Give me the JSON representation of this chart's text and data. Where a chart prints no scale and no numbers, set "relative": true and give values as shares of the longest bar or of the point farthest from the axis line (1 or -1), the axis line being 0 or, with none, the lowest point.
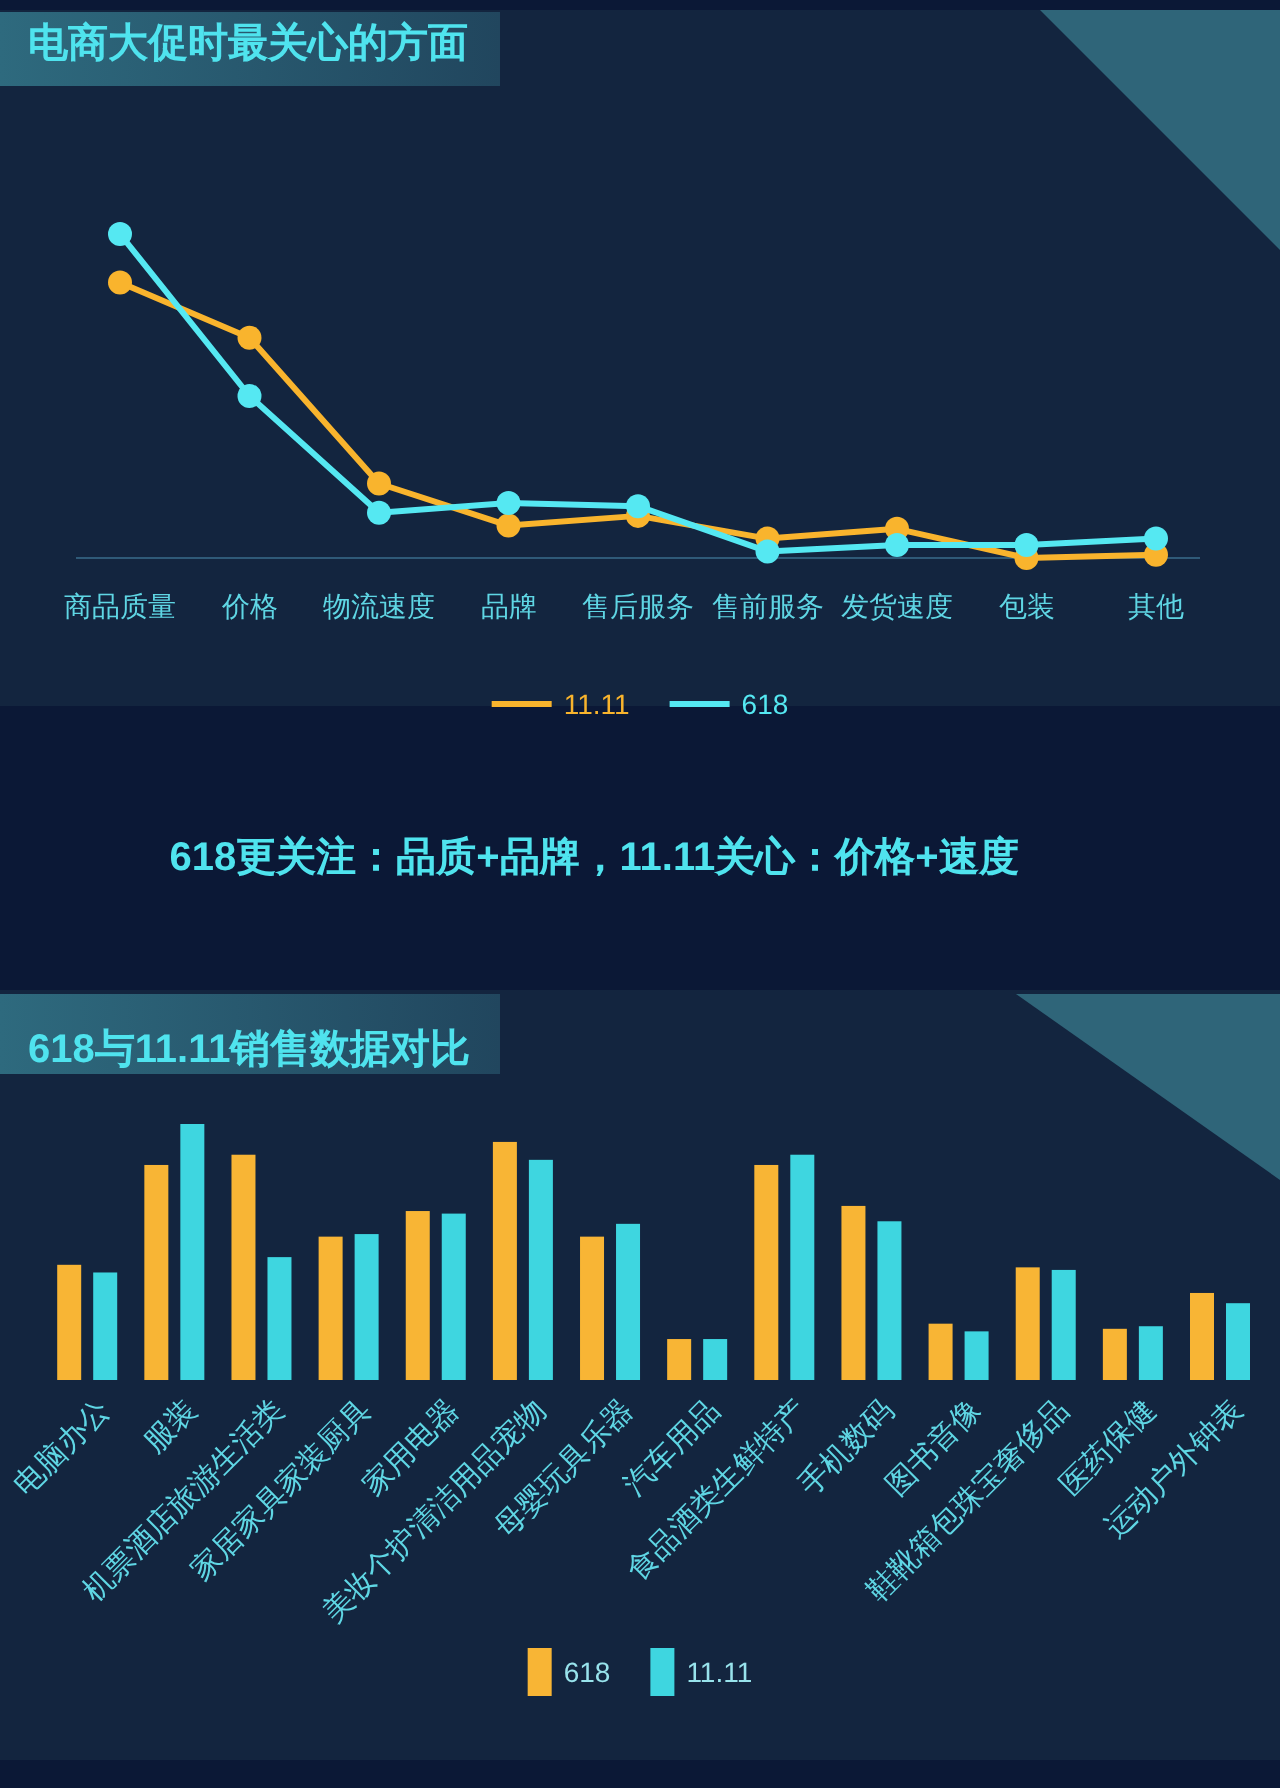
{
  "chart_data": [
    {
      "type": "line",
      "title": "电商大促时最关心的方面",
      "categories": [
        "商品质量",
        "价格",
        "物流速度",
        "品牌",
        "售后服务",
        "售前服务",
        "发货速度",
        "包装",
        "其他"
      ],
      "series": [
        {
          "name": "11.11",
          "color": "#f9b42d",
          "values": [
            0.85,
            0.68,
            0.23,
            0.1,
            0.13,
            0.06,
            0.09,
            0,
            0.01
          ]
        },
        {
          "name": "618",
          "color": "#55e8f2",
          "values": [
            1,
            0.5,
            0.14,
            0.17,
            0.16,
            0.02,
            0.04,
            0.04,
            0.06
          ]
        }
      ],
      "relative": true,
      "marker": "circle",
      "legend": "bottom",
      "annotations": [
        "618更关注：品质+品牌，11.11关心：价格+速度"
      ]
    },
    {
      "type": "bar",
      "title": "618与11.11销售数据对比",
      "categories": [
        "电脑办公",
        "服装",
        "机票酒店旅游生活类",
        "家居家具家装厨具",
        "家用电器",
        "美妆个护清洁用品宠物",
        "母婴玩具乐器",
        "汽车用品",
        "食品酒类生鲜特产",
        "手机数码",
        "图书音像",
        "鞋靴箱包珠宝奢侈品",
        "医药保健",
        "运动户外钟表"
      ],
      "series": [
        {
          "name": "618",
          "color": "#f8b535",
          "values": [
            0.45,
            0.84,
            0.88,
            0.56,
            0.66,
            0.93,
            0.56,
            0.16,
            0.84,
            0.68,
            0.22,
            0.44,
            0.2,
            0.34
          ]
        },
        {
          "name": "11.11",
          "color": "#3ed6e0",
          "values": [
            0.42,
            1,
            0.48,
            0.57,
            0.65,
            0.86,
            0.61,
            0.16,
            0.88,
            0.62,
            0.19,
            0.43,
            0.21,
            0.3
          ]
        }
      ],
      "relative": true,
      "legend": "bottom"
    }
  ]
}
